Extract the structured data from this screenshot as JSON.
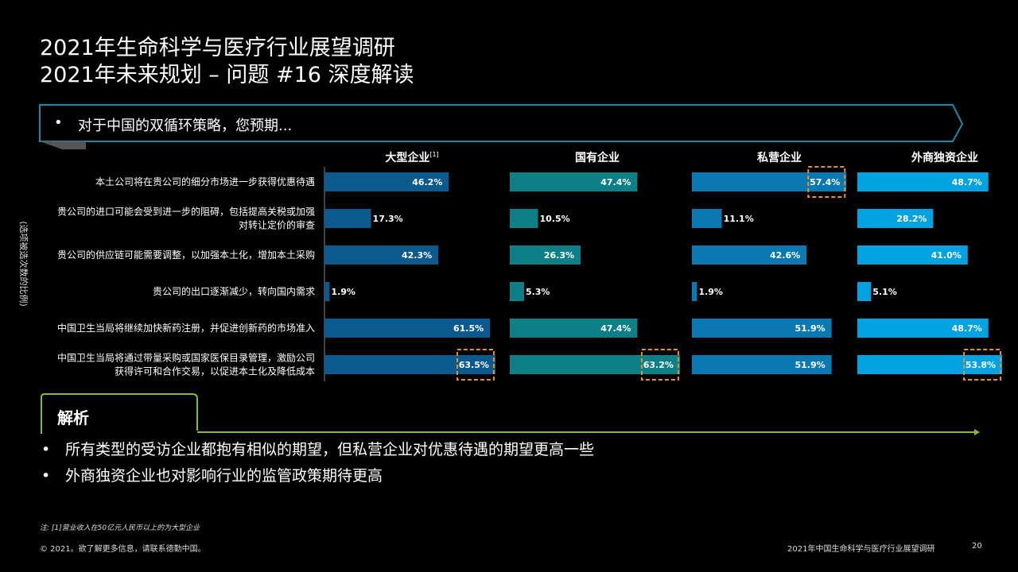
{
  "header": {
    "title_line1": "2021年生命科学与医疗行业展望调研",
    "title_line2": "2021年未来规划 – 问题 #16 深度解读"
  },
  "question": {
    "bullet": "•",
    "text": "对于中国的双循环策略，您预期..."
  },
  "chart_data": {
    "type": "bar",
    "orientation": "horizontal",
    "ylabel": "(选项被选次数的比例)",
    "categories": [
      "本土公司将在贵公司的细分市场进一步获得优惠待遇",
      "贵公司的进口可能会受到进一步的阻碍，包括提高关税或加强对转让定价的审查",
      "贵公司的供应链可能需要调整，以加强本土化，增加本土采购",
      "贵公司的出口逐渐减少，转向国内需求",
      "中国卫生当局将继续加快新药注册，并促进创新药的市场准入",
      "中国卫生当局将通过带量采购或国家医保目录管理，激励公司获得许可和合作交易，以促进本土化及降低成本"
    ],
    "category_lines": [
      [
        "本土公司将在贵公司的细分市场进一步获得优惠待遇"
      ],
      [
        "贵公司的进口可能会受到进一步的阻碍，包括提高关税或加强",
        "对转让定价的审查"
      ],
      [
        "贵公司的供应链可能需要调整，以加强本土化，增加本土采购"
      ],
      [
        "贵公司的出口逐渐减少，转向国内需求"
      ],
      [
        "中国卫生当局将继续加快新药注册，并促进创新药的市场准入"
      ],
      [
        "中国卫生当局将通过带量采购或国家医保目录管理，激励公司",
        "获得许可和合作交易，以促进本土化及降低成本"
      ]
    ],
    "series": [
      {
        "name": "大型企业",
        "superscript": "[1]",
        "color": "#0b5a8d",
        "values": [
          46.2,
          17.3,
          42.3,
          1.9,
          61.5,
          63.5
        ],
        "highlight": [
          5
        ]
      },
      {
        "name": "国有企业",
        "superscript": "",
        "color": "#0d7f86",
        "values": [
          47.4,
          10.5,
          26.3,
          5.3,
          47.4,
          63.2
        ],
        "highlight": [
          5
        ]
      },
      {
        "name": "私营企业",
        "superscript": "",
        "color": "#0a79b2",
        "values": [
          57.4,
          11.1,
          42.6,
          1.9,
          51.9,
          51.9
        ],
        "highlight": [
          0
        ]
      },
      {
        "name": "外商独资企业",
        "superscript": "",
        "color": "#00a3e0",
        "values": [
          48.7,
          28.2,
          41.0,
          5.1,
          48.7,
          53.8
        ],
        "highlight": [
          5
        ]
      }
    ],
    "value_suffix": "%",
    "highlight_color": "#e8912d"
  },
  "analysis": {
    "title": "解析",
    "bullet": "•",
    "points": [
      "所有类型的受访企业都抱有相似的期望，但私营企业对优惠待遇的期望更高一些",
      "外商独资企业也对影响行业的监管政策期待更高"
    ],
    "accent_color": "#86bc25"
  },
  "footer": {
    "note": "注: [1]营业收入在50亿元人民币以上的为大型企业",
    "copyright": "© 2021。欲了解更多信息，请联系德勤中国。",
    "title": "2021年中国生命科学与医疗行业展望调研",
    "page": "20"
  }
}
